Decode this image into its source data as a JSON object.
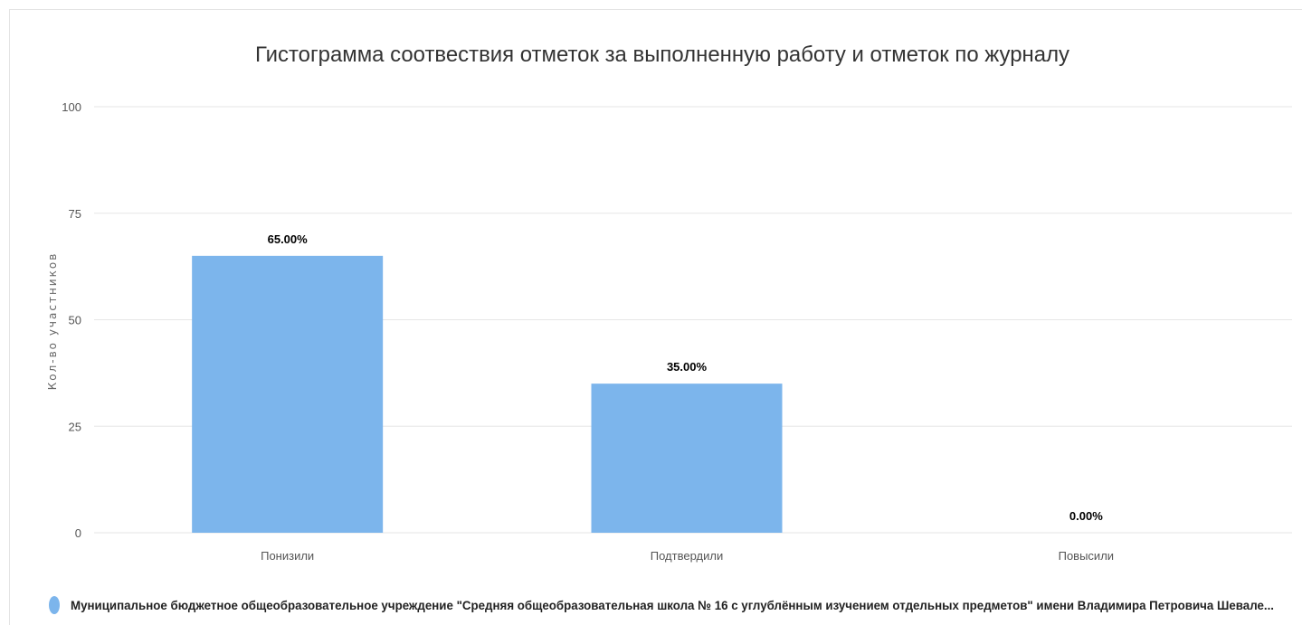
{
  "chart_data": {
    "type": "bar",
    "title": "Гистограмма соотвествия отметок за выполненную работу и отметок по журналу",
    "xlabel": "",
    "ylabel": "Кол-во участников",
    "categories": [
      "Понизили",
      "Подтвердили",
      "Повысили"
    ],
    "series": [
      {
        "name": "Муниципальное бюджетное общеобразовательное учреждение \"Средняя общеобразовательная школа № 16 с углублённым изучением отдельных предметов\" имени Владимира Петровича Шевале...",
        "values": [
          65,
          35,
          0
        ],
        "data_labels": [
          "65.00%",
          "35.00%",
          "0.00%"
        ],
        "color": "#7cb5ec"
      }
    ],
    "ylim": [
      0,
      100
    ],
    "yticks": [
      "0",
      "25",
      "50",
      "75",
      "100"
    ],
    "grid": true,
    "legend": "bottom-left"
  }
}
